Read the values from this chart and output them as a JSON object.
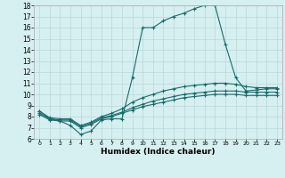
{
  "xlabel": "Humidex (Indice chaleur)",
  "bg_color": "#d6eff0",
  "line_color": "#1a6b6b",
  "grid_color": "#b8d8da",
  "xlim": [
    -0.5,
    23.5
  ],
  "ylim": [
    6,
    18
  ],
  "xticks": [
    0,
    1,
    2,
    3,
    4,
    5,
    6,
    7,
    8,
    9,
    10,
    11,
    12,
    13,
    14,
    15,
    16,
    17,
    18,
    19,
    20,
    21,
    22,
    23
  ],
  "yticks": [
    6,
    7,
    8,
    9,
    10,
    11,
    12,
    13,
    14,
    15,
    16,
    17,
    18
  ],
  "series": [
    {
      "x": [
        0,
        1,
        2,
        3,
        4,
        5,
        6,
        7,
        8,
        9,
        10,
        11,
        12,
        13,
        14,
        15,
        16,
        17,
        18,
        19,
        20,
        21,
        22,
        23
      ],
      "y": [
        8.5,
        7.8,
        7.6,
        7.2,
        6.4,
        6.7,
        7.7,
        7.8,
        7.8,
        11.5,
        16.0,
        16.0,
        16.6,
        17.0,
        17.3,
        17.7,
        18.0,
        18.0,
        14.5,
        11.5,
        10.3,
        10.4,
        10.5,
        10.5
      ]
    },
    {
      "x": [
        0,
        1,
        2,
        3,
        4,
        5,
        6,
        7,
        8,
        9,
        10,
        11,
        12,
        13,
        14,
        15,
        16,
        17,
        18,
        19,
        20,
        21,
        22,
        23
      ],
      "y": [
        8.5,
        7.9,
        7.8,
        7.8,
        7.2,
        7.5,
        8.0,
        8.3,
        8.7,
        9.3,
        9.7,
        10.0,
        10.3,
        10.5,
        10.7,
        10.8,
        10.9,
        11.0,
        11.0,
        10.9,
        10.7,
        10.6,
        10.6,
        10.6
      ]
    },
    {
      "x": [
        0,
        1,
        2,
        3,
        4,
        5,
        6,
        7,
        8,
        9,
        10,
        11,
        12,
        13,
        14,
        15,
        16,
        17,
        18,
        19,
        20,
        21,
        22,
        23
      ],
      "y": [
        8.3,
        7.8,
        7.7,
        7.7,
        7.1,
        7.4,
        7.9,
        8.1,
        8.4,
        8.8,
        9.1,
        9.4,
        9.6,
        9.8,
        10.0,
        10.1,
        10.2,
        10.3,
        10.3,
        10.3,
        10.2,
        10.2,
        10.2,
        10.2
      ]
    },
    {
      "x": [
        0,
        1,
        2,
        3,
        4,
        5,
        6,
        7,
        8,
        9,
        10,
        11,
        12,
        13,
        14,
        15,
        16,
        17,
        18,
        19,
        20,
        21,
        22,
        23
      ],
      "y": [
        8.2,
        7.7,
        7.6,
        7.6,
        7.0,
        7.3,
        7.8,
        8.0,
        8.3,
        8.6,
        8.9,
        9.1,
        9.3,
        9.5,
        9.7,
        9.8,
        9.9,
        10.0,
        10.0,
        10.0,
        9.9,
        9.9,
        9.9,
        9.9
      ]
    }
  ]
}
